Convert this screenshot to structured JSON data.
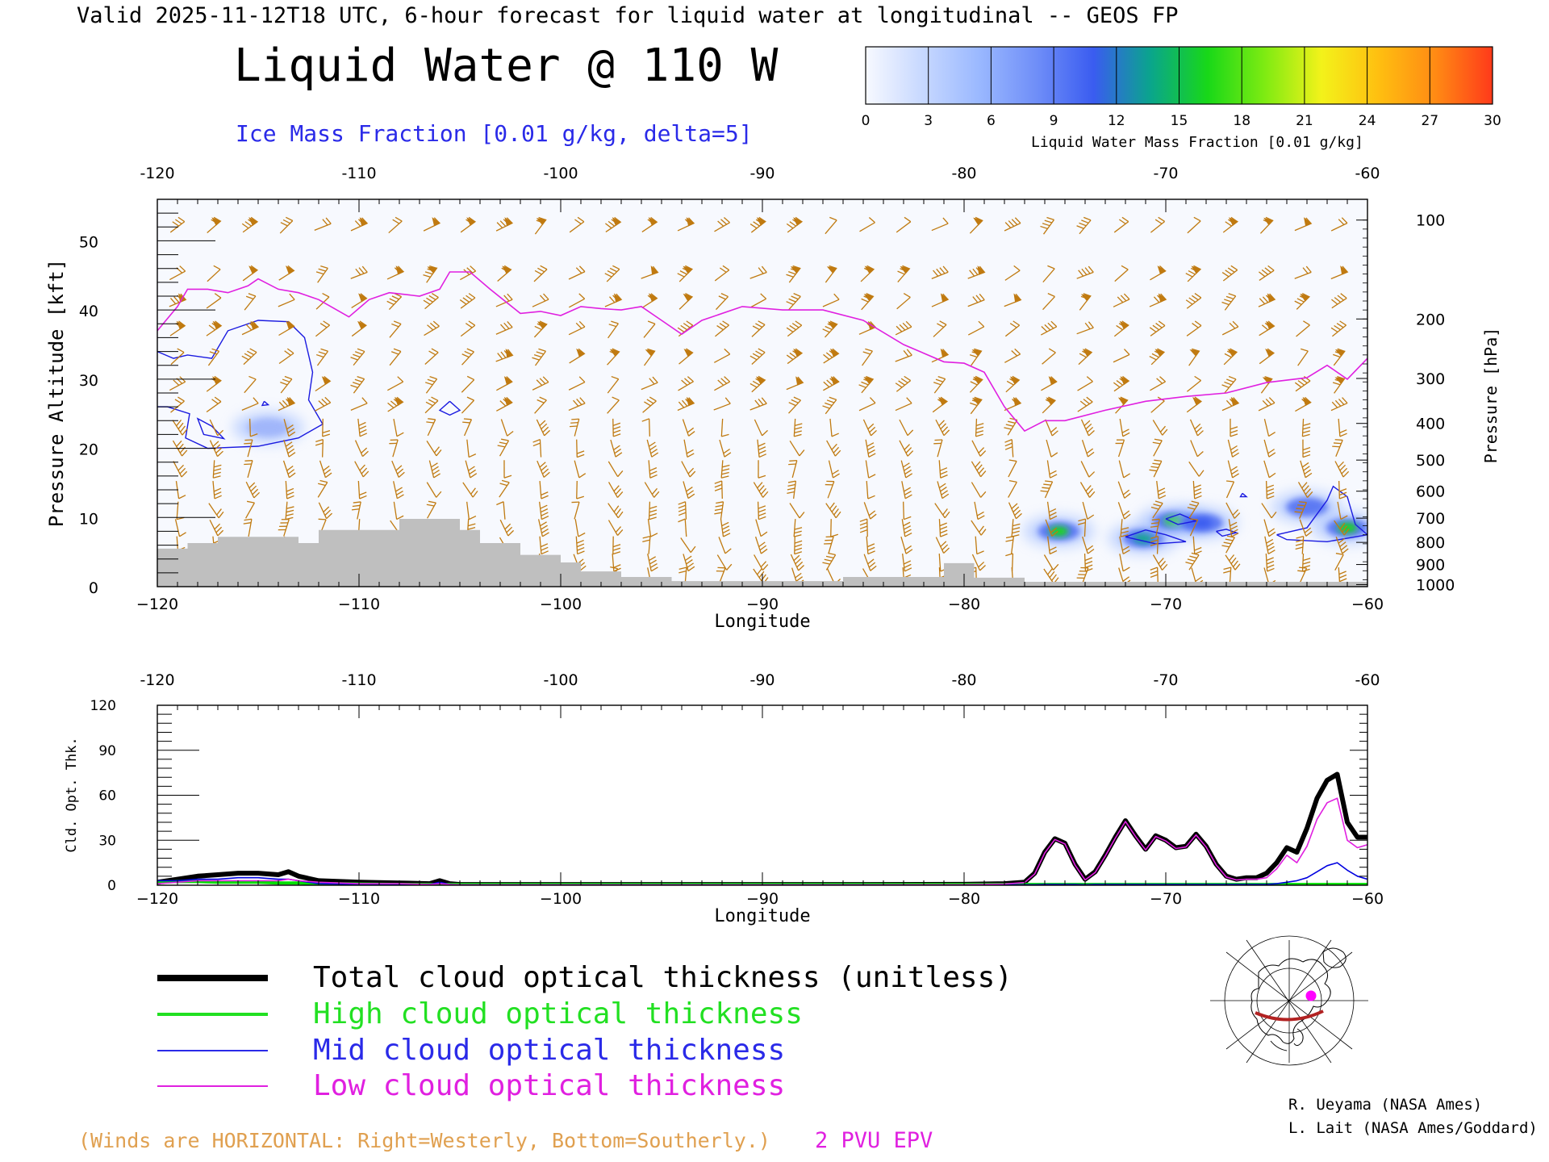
{
  "header": {
    "subtitle": "Valid 2025-11-12T18 UTC, 6-hour forecast for liquid water at longitudinal -- GEOS FP",
    "title": "Liquid Water @ 110 W",
    "contour_note": "Ice Mass Fraction [0.01 g/kg, delta=5]"
  },
  "colorbar": {
    "ticks": [
      "0",
      "3",
      "6",
      "9",
      "12",
      "15",
      "18",
      "21",
      "24",
      "27",
      "30"
    ],
    "label": "Liquid Water Mass Fraction [0.01 g/kg]",
    "colors": [
      "#f7f9ff",
      "#c7d8ff",
      "#9ab8ff",
      "#6f8ef8",
      "#3a5cf0",
      "#0aa58c",
      "#18d818",
      "#7eeb12",
      "#f3f21a",
      "#ffbf10",
      "#ff8a14",
      "#ff3a1a"
    ]
  },
  "chart_data": [
    {
      "type": "heatmap",
      "name": "cross-section",
      "x_axis_top_ticks": [
        "-120",
        "-110",
        "-100",
        "-90",
        "-80",
        "-70",
        "-60"
      ],
      "x_axis_bottom_ticks": [
        "−120",
        "−110",
        "−100",
        "−90",
        "−80",
        "−70",
        "−60"
      ],
      "xlabel": "Longitude",
      "xlim": [
        -120,
        -60
      ],
      "ylabel_left": "Pressure Altitude [kft]",
      "y_ticks_left": [
        "0",
        "10",
        "20",
        "30",
        "40",
        "50"
      ],
      "ylim_kft": [
        0,
        56
      ],
      "ylabel_right": "Pressure [hPa]",
      "y_ticks_right": [
        {
          "label": "100",
          "kft": 53
        },
        {
          "label": "200",
          "kft": 38.7
        },
        {
          "label": "300",
          "kft": 30.1
        },
        {
          "label": "400",
          "kft": 23.6
        },
        {
          "label": "500",
          "kft": 18.3
        },
        {
          "label": "600",
          "kft": 13.8
        },
        {
          "label": "700",
          "kft": 9.9
        },
        {
          "label": "800",
          "kft": 6.4
        },
        {
          "label": "900",
          "kft": 3.2
        },
        {
          "label": "1000",
          "kft": 0.3
        }
      ],
      "terrain_kft": [
        [
          -120,
          0
        ],
        [
          -120,
          5.5
        ],
        [
          -118.5,
          5.5
        ],
        [
          -118.5,
          6.3
        ],
        [
          -117,
          6.3
        ],
        [
          -117,
          7.2
        ],
        [
          -113,
          7.2
        ],
        [
          -113,
          6.3
        ],
        [
          -112,
          6.3
        ],
        [
          -112,
          8.2
        ],
        [
          -108,
          8.2
        ],
        [
          -108,
          9.8
        ],
        [
          -105,
          9.8
        ],
        [
          -105,
          8.2
        ],
        [
          -104,
          8.2
        ],
        [
          -104,
          6.3
        ],
        [
          -102,
          6.3
        ],
        [
          -102,
          4.6
        ],
        [
          -100,
          4.6
        ],
        [
          -100,
          3.5
        ],
        [
          -99,
          3.5
        ],
        [
          -99,
          2.2
        ],
        [
          -97,
          2.2
        ],
        [
          -97,
          1.4
        ],
        [
          -94.5,
          1.4
        ],
        [
          -94.5,
          0.8
        ],
        [
          -86,
          0.8
        ],
        [
          -86,
          1.4
        ],
        [
          -81,
          1.4
        ],
        [
          -81,
          3.4
        ],
        [
          -79.5,
          3.4
        ],
        [
          -79.5,
          1.3
        ],
        [
          -77,
          1.3
        ],
        [
          -77,
          0.7
        ],
        [
          -60,
          0.7
        ],
        [
          -60,
          0
        ]
      ],
      "tropopause_2pvu_kft": [
        [
          -120,
          37
        ],
        [
          -119,
          40.5
        ],
        [
          -118.5,
          43
        ],
        [
          -117.5,
          43
        ],
        [
          -116.5,
          42.5
        ],
        [
          -115.5,
          43.5
        ],
        [
          -115,
          44.5
        ],
        [
          -114,
          43
        ],
        [
          -113,
          42.5
        ],
        [
          -112,
          41.5
        ],
        [
          -110.5,
          39
        ],
        [
          -109.5,
          41.5
        ],
        [
          -108.5,
          42.5
        ],
        [
          -107,
          42
        ],
        [
          -106,
          43
        ],
        [
          -105.5,
          45.5
        ],
        [
          -104.5,
          45.5
        ],
        [
          -103.5,
          43
        ],
        [
          -102,
          39.5
        ],
        [
          -101,
          39.8
        ],
        [
          -100,
          39.2
        ],
        [
          -99,
          40.5
        ],
        [
          -98,
          40.2
        ],
        [
          -97,
          40
        ],
        [
          -96,
          40.5
        ],
        [
          -95,
          38.5
        ],
        [
          -94,
          36.5
        ],
        [
          -93,
          38.5
        ],
        [
          -91,
          40.5
        ],
        [
          -89,
          40
        ],
        [
          -87,
          40
        ],
        [
          -85,
          38.5
        ],
        [
          -83,
          35
        ],
        [
          -81,
          32.5
        ],
        [
          -80,
          32.3
        ],
        [
          -79,
          31
        ],
        [
          -78,
          26
        ],
        [
          -77,
          22.5
        ],
        [
          -76,
          24
        ],
        [
          -75,
          24
        ],
        [
          -73,
          25.5
        ],
        [
          -71,
          26.8
        ],
        [
          -69,
          27.5
        ],
        [
          -67,
          28
        ],
        [
          -65,
          29.5
        ],
        [
          -63,
          30.2
        ],
        [
          -62,
          32
        ],
        [
          -61,
          30
        ],
        [
          -60,
          33
        ]
      ],
      "liquid_water_blobs": [
        {
          "lon": -75.3,
          "kft": 8.0,
          "value": 15
        },
        {
          "lon": -71.1,
          "kft": 7.0,
          "value": 13
        },
        {
          "lon": -69.6,
          "kft": 9.5,
          "value": 16
        },
        {
          "lon": -68.2,
          "kft": 9.2,
          "value": 12
        },
        {
          "lon": -63,
          "kft": 11.5,
          "value": 8
        },
        {
          "lon": -61,
          "kft": 8.5,
          "value": 16
        },
        {
          "lon": -114.5,
          "kft": 23,
          "value": 3
        }
      ]
    },
    {
      "type": "line",
      "name": "cloud-optical-thickness",
      "ylabel": "Cld. Opt. Thk.",
      "y_ticks": [
        "0",
        "30",
        "60",
        "90",
        "120"
      ],
      "ylim": [
        0,
        120
      ],
      "x_axis_top_ticks": [
        "-120",
        "-110",
        "-100",
        "-90",
        "-80",
        "-70",
        "-60"
      ],
      "x_axis_bottom_ticks": [
        "−120",
        "−110",
        "−100",
        "−90",
        "−80",
        "−70",
        "−60"
      ],
      "xlabel": "Longitude",
      "xlim": [
        -120,
        -60
      ],
      "x": [
        -120,
        -119,
        -118,
        -117,
        -116,
        -115,
        -114,
        -113.5,
        -113,
        -112,
        -110,
        -108,
        -106.5,
        -106,
        -105.5,
        -105,
        -100,
        -95,
        -90,
        -85,
        -80,
        -78,
        -77,
        -76.5,
        -76,
        -75.5,
        -75,
        -74.5,
        -74,
        -73.5,
        -73,
        -72.5,
        -72,
        -71.5,
        -71,
        -70.5,
        -70,
        -69.5,
        -69,
        -68.5,
        -68,
        -67.5,
        -67,
        -66.5,
        -66,
        -65.5,
        -65,
        -64.5,
        -64,
        -63.5,
        -63,
        -62.5,
        -62,
        -61.5,
        -61,
        -60.5,
        -60
      ],
      "series": [
        {
          "name": "Total cloud optical thickness (unitless)",
          "color": "#000000",
          "values": [
            2,
            4,
            6,
            7,
            8,
            8,
            7,
            9,
            6,
            3,
            2,
            1.5,
            1,
            3,
            1,
            0.5,
            0.5,
            0.5,
            0.5,
            0.5,
            0.6,
            1,
            2,
            8,
            22,
            31,
            28,
            14,
            4,
            9,
            20,
            32,
            43,
            33,
            24,
            33,
            30,
            25,
            26,
            34,
            26,
            14,
            6,
            4,
            5,
            5,
            8,
            15,
            25,
            22,
            38,
            58,
            70,
            74,
            42,
            32,
            32
          ]
        },
        {
          "name": "High cloud optical thickness",
          "color": "#00e000",
          "values": [
            2,
            2.5,
            2.5,
            2,
            2,
            2,
            1.5,
            1.5,
            1.5,
            1,
            0.8,
            0.5,
            0.5,
            0.5,
            0.5,
            0.5,
            0.5,
            0.5,
            0.5,
            0.5,
            0.5,
            0.5,
            0.5,
            0.5,
            0.5,
            0.5,
            0.5,
            0.5,
            0.5,
            0.5,
            0.5,
            0.5,
            0.5,
            0.5,
            0.5,
            0.5,
            0.5,
            0.5,
            0.5,
            0.5,
            0.5,
            0.5,
            0.5,
            0.5,
            0.5,
            0.5,
            0.5,
            0.5,
            0.5,
            0.5,
            0.5,
            0.5,
            0.5,
            0.5,
            0.5,
            0.5,
            0.5
          ]
        },
        {
          "name": "Mid cloud optical thickness",
          "color": "#0000e0",
          "values": [
            3,
            3,
            4,
            4,
            5,
            5,
            4,
            4,
            3,
            1,
            0.5,
            0.5,
            0.5,
            2,
            0.5,
            0.3,
            0.3,
            0.3,
            0.3,
            0.3,
            0.3,
            0.3,
            0.3,
            0.3,
            0.5,
            0.5,
            0.5,
            0.5,
            0.3,
            0.5,
            0.5,
            0.5,
            0.5,
            0.5,
            0.5,
            0.5,
            0.5,
            0.5,
            0.5,
            0.5,
            0.5,
            0.5,
            0.5,
            0.5,
            0.5,
            0.5,
            0.5,
            1,
            2,
            3,
            5,
            9,
            13,
            15,
            10,
            6,
            4
          ]
        },
        {
          "name": "Low cloud optical thickness",
          "color": "#e020e0",
          "values": [
            1,
            2,
            3,
            3,
            3,
            3,
            3,
            4,
            3,
            2,
            1,
            1,
            0.5,
            1,
            0.5,
            0.3,
            0.3,
            0.3,
            0.3,
            0.3,
            0.4,
            0.8,
            1.8,
            7.5,
            21.5,
            30.5,
            27.5,
            13.5,
            3.5,
            8.5,
            19.5,
            31.5,
            42.5,
            32.5,
            23.5,
            32.5,
            29.5,
            24.5,
            25.5,
            33.5,
            25.5,
            13.5,
            5.5,
            3.5,
            4,
            4,
            5,
            11,
            20,
            15,
            26,
            44,
            55,
            58,
            30,
            25,
            27
          ]
        }
      ]
    }
  ],
  "legend": {
    "items": [
      {
        "label": "Total cloud optical thickness (unitless)",
        "color": "#000000"
      },
      {
        "label": "High cloud optical thickness",
        "color": "#22e022"
      },
      {
        "label": "Mid cloud optical thickness",
        "color": "#2a2ae8"
      },
      {
        "label": "Low cloud optical thickness",
        "color": "#e020e0"
      }
    ]
  },
  "footer": {
    "winds_note": "(Winds are HORIZONTAL: Right=Westerly, Bottom=Southerly.)",
    "epv_label": "2 PVU EPV",
    "credit_1": "R. Ueyama (NASA Ames)",
    "credit_2": "L. Lait (NASA Ames/Goddard)"
  },
  "colors": {
    "wind_barb": "#c07a10",
    "terrain": "#bfbfbf",
    "tropopause": "#e020e0",
    "ice_contour": "#1a1ae0"
  }
}
